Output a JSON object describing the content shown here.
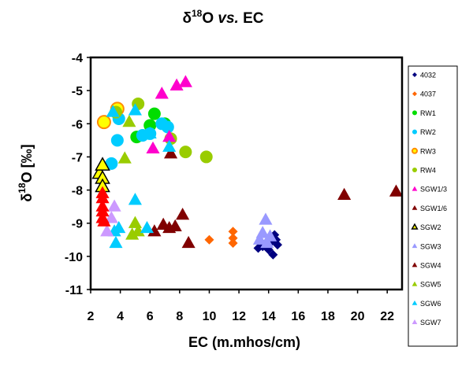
{
  "chart_data": {
    "type": "scatter",
    "title": "δ¹⁸O vs. EC",
    "title_parts": {
      "delta": "δ",
      "superscript": "18",
      "letter": "O ",
      "italic": "vs.",
      "tail": " EC"
    },
    "xlabel": "EC (m.mhos/cm)",
    "ylabel": "δ18O [‰]",
    "ylabel_parts": {
      "delta": "δ",
      "superscript": "18",
      "tail": "O [‰]"
    },
    "xlim": [
      2,
      23
    ],
    "ylim": [
      -11,
      -4
    ],
    "x_ticks": [
      "2",
      "4",
      "6",
      "8",
      "10",
      "12",
      "14",
      "16",
      "18",
      "20",
      "22"
    ],
    "y_ticks": [
      "-4",
      "-5",
      "-6",
      "-7",
      "-8",
      "-9",
      "-10",
      "-11"
    ],
    "grid": false,
    "legend_position": "right",
    "series": [
      {
        "name": "4032",
        "marker": "diamond",
        "color": "#000080",
        "points": [
          [
            13.3,
            -9.75
          ],
          [
            13.6,
            -9.7
          ],
          [
            13.8,
            -9.6
          ],
          [
            14.0,
            -9.8
          ],
          [
            14.2,
            -9.55
          ],
          [
            14.3,
            -9.95
          ],
          [
            14.4,
            -9.35
          ],
          [
            14.5,
            -9.5
          ],
          [
            14.6,
            -9.65
          ]
        ]
      },
      {
        "name": "4037",
        "marker": "diamond",
        "color": "#FF6600",
        "points": [
          [
            10.0,
            -9.5
          ],
          [
            11.6,
            -9.25
          ],
          [
            11.6,
            -9.45
          ],
          [
            11.6,
            -9.6
          ]
        ]
      },
      {
        "name": "RW1",
        "marker": "circle",
        "color": "#00DD00",
        "points": [
          [
            5.1,
            -6.4
          ],
          [
            6.0,
            -6.05
          ],
          [
            6.3,
            -5.7
          ],
          [
            7.0,
            -6.0
          ]
        ]
      },
      {
        "name": "RW2",
        "marker": "circle",
        "color": "#00CCFF",
        "points": [
          [
            3.4,
            -7.2
          ],
          [
            3.8,
            -6.5
          ],
          [
            3.9,
            -5.85
          ],
          [
            5.5,
            -6.35
          ],
          [
            6.0,
            -6.3
          ],
          [
            6.8,
            -6.0
          ],
          [
            7.2,
            -6.1
          ]
        ]
      },
      {
        "name": "RW3",
        "marker": "circle",
        "color": "#FFFF00",
        "stroke": "#FF8C00",
        "points": [
          [
            2.9,
            -5.95
          ],
          [
            3.8,
            -5.55
          ]
        ]
      },
      {
        "name": "RW4",
        "marker": "circle",
        "color": "#99CC00",
        "points": [
          [
            3.7,
            -5.65
          ],
          [
            5.2,
            -5.4
          ],
          [
            7.4,
            -6.45
          ],
          [
            8.4,
            -6.85
          ],
          [
            9.8,
            -7.0
          ]
        ]
      },
      {
        "name": "SGW1/3",
        "marker": "triangle",
        "color": "#FF00CC",
        "points": [
          [
            6.2,
            -6.75
          ],
          [
            6.8,
            -5.1
          ],
          [
            7.3,
            -6.4
          ],
          [
            7.8,
            -4.85
          ],
          [
            8.4,
            -4.75
          ]
        ]
      },
      {
        "name": "SGW1/6",
        "marker": "triangle",
        "color": "#800000",
        "points": [
          [
            7.4,
            -6.9
          ]
        ]
      },
      {
        "name": "SGW2",
        "marker": "triangle",
        "color": "#FFFF00",
        "stroke": "#000000",
        "points": [
          [
            2.6,
            -7.5
          ],
          [
            2.8,
            -7.25
          ],
          [
            2.8,
            -7.65
          ],
          [
            2.8,
            -7.9
          ]
        ]
      },
      {
        "name": "SGW3",
        "marker": "triangle",
        "color": "#9999FF",
        "points": [
          [
            13.4,
            -9.5
          ],
          [
            13.6,
            -9.3
          ],
          [
            13.8,
            -8.9
          ],
          [
            13.9,
            -9.6
          ],
          [
            14.1,
            -9.4
          ]
        ]
      },
      {
        "name": "SGW4",
        "marker": "triangle",
        "color": "#800000",
        "points": [
          [
            6.3,
            -9.25
          ],
          [
            6.9,
            -9.05
          ],
          [
            7.3,
            -9.15
          ],
          [
            7.7,
            -9.1
          ],
          [
            8.2,
            -8.75
          ],
          [
            8.6,
            -9.6
          ],
          [
            19.1,
            -8.15
          ],
          [
            22.6,
            -8.05
          ]
        ]
      },
      {
        "name": "SGW5",
        "marker": "triangle",
        "color": "#99CC00",
        "points": [
          [
            4.3,
            -7.05
          ],
          [
            4.6,
            -5.95
          ],
          [
            4.8,
            -9.35
          ],
          [
            5.0,
            -9.0
          ],
          [
            5.2,
            -9.25
          ]
        ]
      },
      {
        "name": "SGW6",
        "marker": "triangle",
        "color": "#00CCFF",
        "points": [
          [
            3.5,
            -5.65
          ],
          [
            3.6,
            -9.25
          ],
          [
            3.7,
            -9.6
          ],
          [
            3.9,
            -9.15
          ],
          [
            5.0,
            -5.6
          ],
          [
            5.0,
            -8.3
          ],
          [
            5.8,
            -9.15
          ],
          [
            6.0,
            -6.3
          ],
          [
            7.3,
            -6.7
          ]
        ]
      },
      {
        "name": "SGW7",
        "marker": "triangle",
        "color": "#CC99FF",
        "points": [
          [
            3.1,
            -9.25
          ],
          [
            3.4,
            -8.85
          ],
          [
            3.6,
            -8.5
          ]
        ]
      }
    ],
    "extra_points": [
      {
        "marker": "triangle",
        "color": "#FF0000",
        "points": [
          [
            2.8,
            -8.1
          ],
          [
            2.8,
            -8.25
          ],
          [
            2.8,
            -8.5
          ],
          [
            2.8,
            -8.65
          ],
          [
            2.8,
            -8.85
          ],
          [
            2.9,
            -8.95
          ]
        ]
      }
    ]
  }
}
